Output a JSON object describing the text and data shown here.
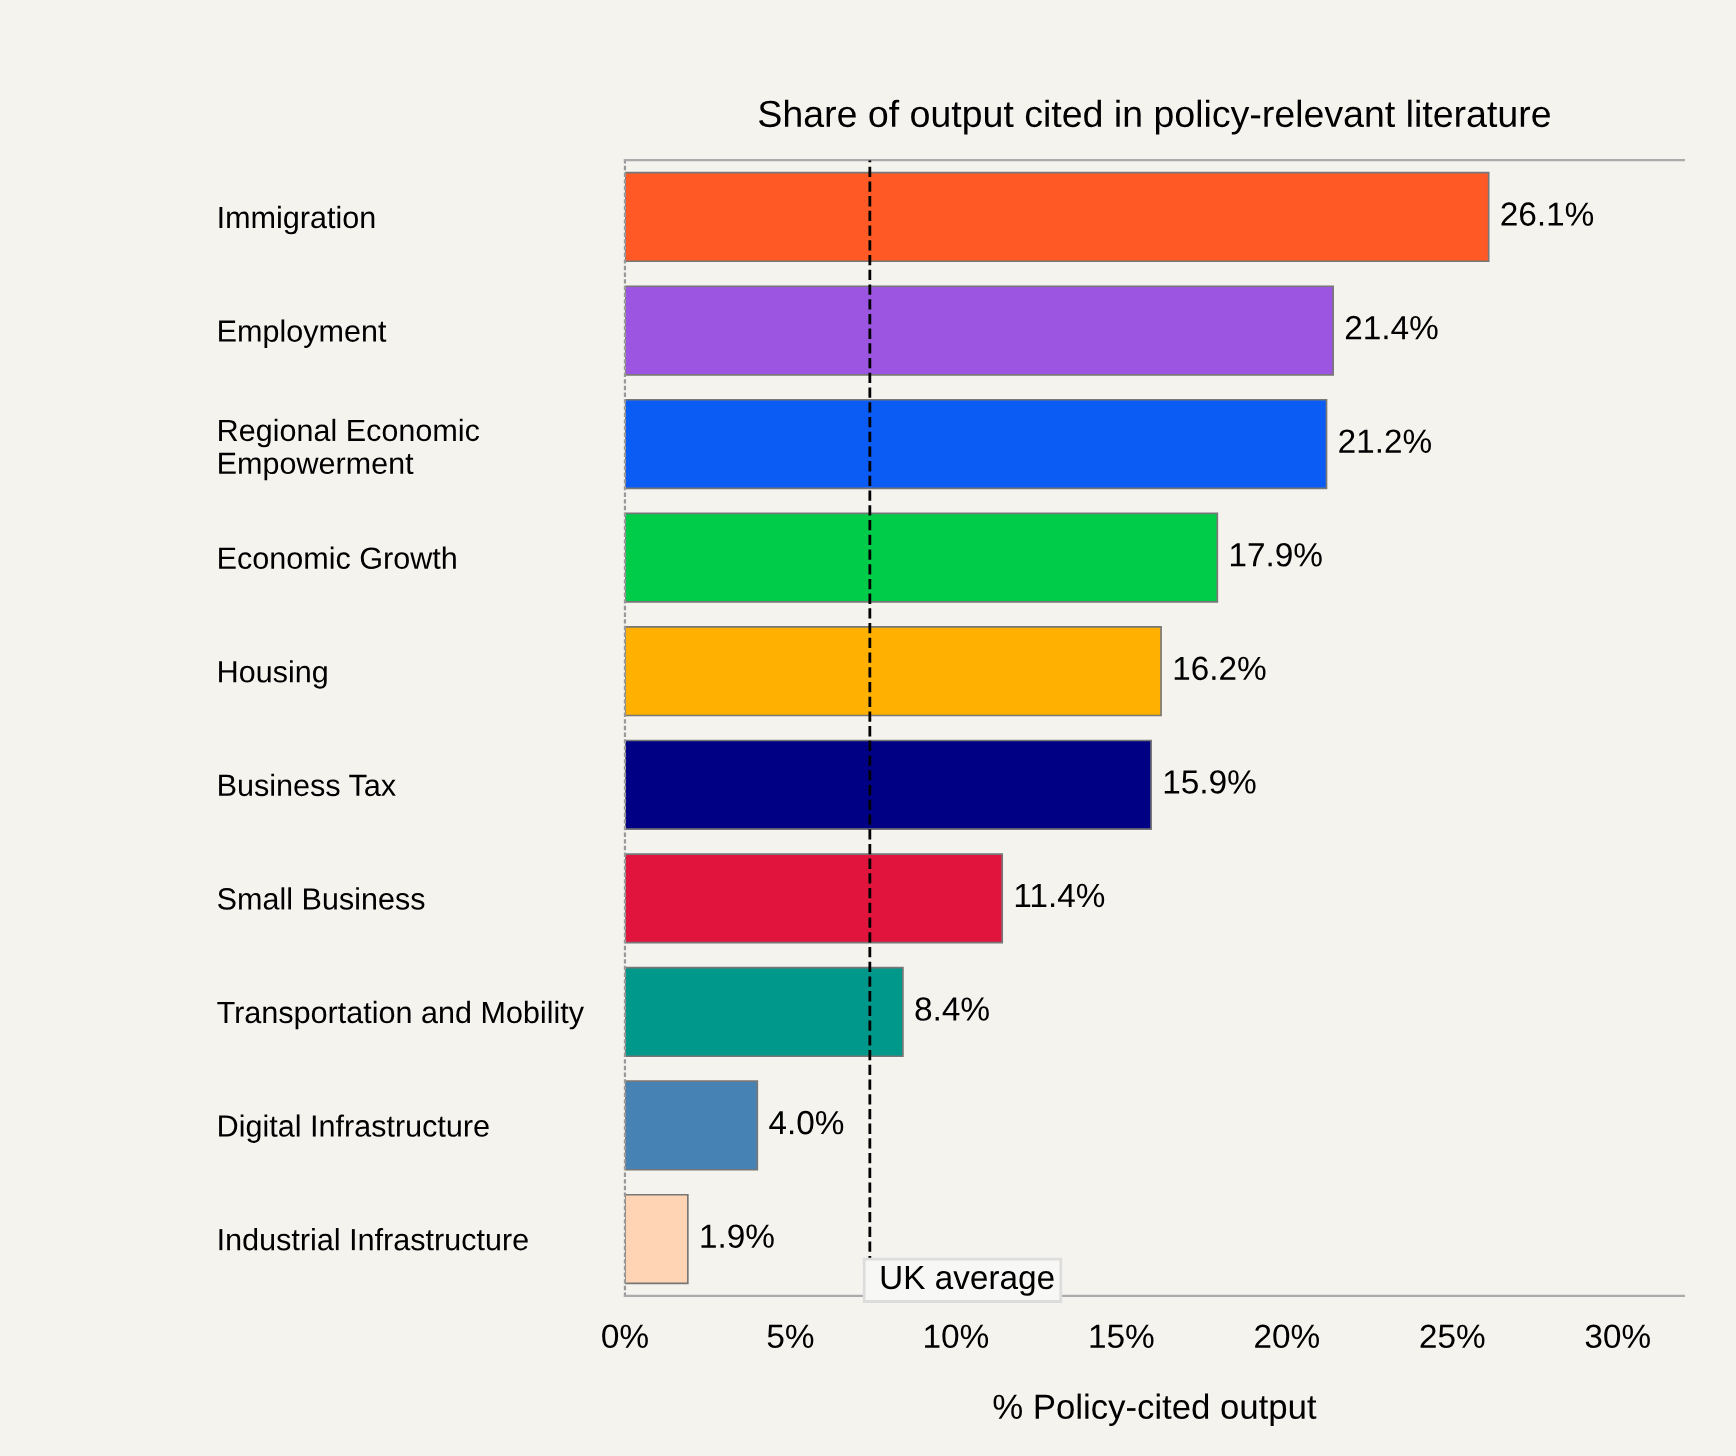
{
  "chart_data": {
    "type": "bar",
    "orientation": "horizontal",
    "title": "Share of output cited in policy-relevant literature",
    "xlabel": "% Policy-cited output",
    "categories": [
      "Immigration",
      "Employment",
      "Regional Economic\nEmpowerment",
      "Economic Growth",
      "Housing",
      "Business Tax",
      "Small Business",
      "Transportation and Mobility",
      "Digital Infrastructure",
      "Industrial Infrastructure"
    ],
    "values": [
      26.1,
      21.4,
      21.2,
      17.9,
      16.2,
      15.9,
      11.4,
      8.4,
      4.0,
      1.9
    ],
    "colors": [
      "#ff5a26",
      "#9b55e0",
      "#0a5cf5",
      "#00cc4a",
      "#ffb000",
      "#000084",
      "#e0143c",
      "#00988a",
      "#4682b4",
      "#ffd4b4"
    ],
    "value_labels": [
      "26.1%",
      "21.4%",
      "21.2%",
      "17.9%",
      "16.2%",
      "15.9%",
      "11.4%",
      "8.4%",
      "4.0%",
      "1.9%"
    ],
    "xlim": [
      0,
      32
    ],
    "xticks": [
      {
        "value": 0,
        "label": "0%"
      },
      {
        "value": 5,
        "label": "5%"
      },
      {
        "value": 10,
        "label": "10%"
      },
      {
        "value": 15,
        "label": "15%"
      },
      {
        "value": 20,
        "label": "20%"
      },
      {
        "value": 25,
        "label": "25%"
      },
      {
        "value": 30,
        "label": "30%"
      }
    ],
    "ref_lines": [
      {
        "axis": "x",
        "value": 7.4,
        "label": "UK average",
        "line_style": "dashed",
        "color": "#000000"
      }
    ],
    "grid": false,
    "legend": false
  }
}
